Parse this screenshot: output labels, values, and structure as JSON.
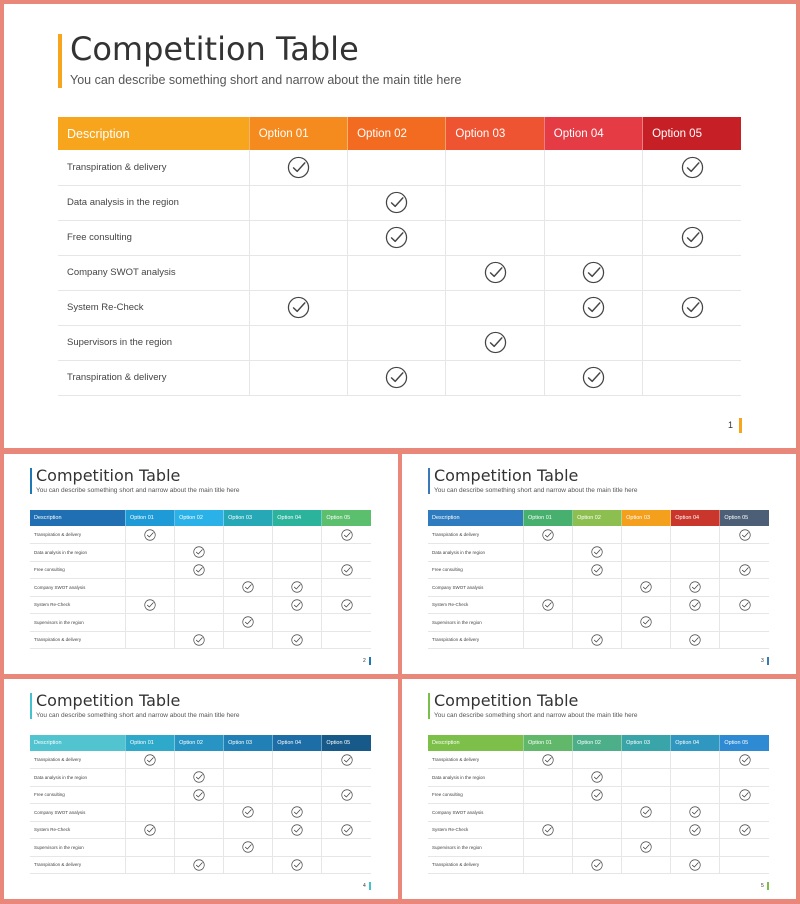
{
  "common": {
    "title": "Competition Table",
    "subtitle": "You can describe something short and narrow about the main title here",
    "headers": [
      "Description",
      "Option 01",
      "Option 02",
      "Option 03",
      "Option 04",
      "Option 05"
    ],
    "rows": [
      {
        "label": "Transpiration & delivery",
        "checks": [
          1,
          0,
          0,
          0,
          1
        ]
      },
      {
        "label": "Data analysis in the region",
        "checks": [
          0,
          1,
          0,
          0,
          0
        ]
      },
      {
        "label": "Free consulting",
        "checks": [
          0,
          1,
          0,
          0,
          1
        ]
      },
      {
        "label": "Company SWOT analysis",
        "checks": [
          0,
          0,
          1,
          1,
          0
        ]
      },
      {
        "label": "System Re-Check",
        "checks": [
          1,
          0,
          0,
          1,
          1
        ]
      },
      {
        "label": "Supervisors in the region",
        "checks": [
          0,
          0,
          1,
          0,
          0
        ]
      },
      {
        "label": "Transpiration & delivery",
        "checks": [
          0,
          1,
          0,
          1,
          0
        ]
      }
    ]
  },
  "slides": [
    {
      "page": "1",
      "accent": "#f7a51d",
      "header_colors": [
        "#f7a51d",
        "#f58a1f",
        "#f36b21",
        "#ef5432",
        "#e43b45",
        "#c71f26"
      ]
    },
    {
      "page": "2",
      "accent": "#1f78b4",
      "header_colors": [
        "#1f6fb2",
        "#1e9ad6",
        "#29b1e8",
        "#27a8b6",
        "#2bb39b",
        "#5cbf6e"
      ]
    },
    {
      "page": "3",
      "accent": "#3a78b8",
      "header_colors": [
        "#2f7bbf",
        "#47b06e",
        "#8cbf4f",
        "#f4a01c",
        "#c9372c",
        "#4d5f77"
      ]
    },
    {
      "page": "4",
      "accent": "#45c1cf",
      "header_colors": [
        "#52c4cf",
        "#2fa9c9",
        "#2794c4",
        "#2180b6",
        "#1d6da6",
        "#175a8a"
      ]
    },
    {
      "page": "5",
      "accent": "#7abf4c",
      "header_colors": [
        "#7dc049",
        "#62b86a",
        "#4caf8a",
        "#3aa5a9",
        "#2f97c0",
        "#2e8bd3"
      ]
    }
  ],
  "icons": {
    "check": "check-circle-icon"
  }
}
